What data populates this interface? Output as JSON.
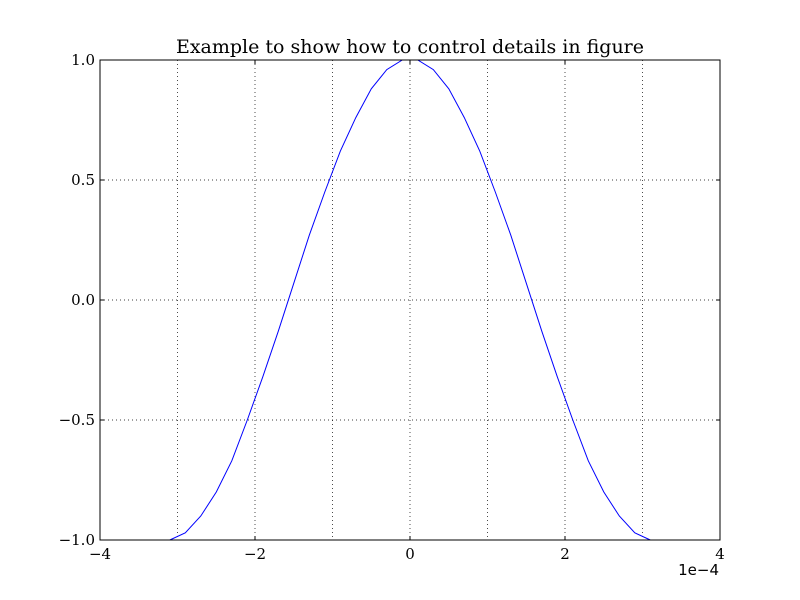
{
  "chart_data": {
    "type": "line",
    "title": "Example to show how to control details in figure",
    "xlabel": "",
    "ylabel": "",
    "xlim": [
      -4,
      4
    ],
    "ylim": [
      -1.0,
      1.0
    ],
    "x_ticks": [
      -4,
      -2,
      0,
      2,
      4
    ],
    "x_tick_labels": [
      "−4",
      "−2",
      "0",
      "2",
      "4"
    ],
    "x_minor_grid": [
      -3,
      -1,
      1,
      3
    ],
    "y_ticks": [
      -1.0,
      -0.5,
      0.0,
      0.5,
      1.0
    ],
    "y_tick_labels": [
      "−1.0",
      "−0.5",
      "0.0",
      "0.5",
      "1.0"
    ],
    "x_offset_label": "1e−4",
    "grid": true,
    "line_color": "#0000ff",
    "series": [
      {
        "x": [
          -3.1,
          -2.9,
          -2.7,
          -2.5,
          -2.3,
          -2.1,
          -1.9,
          -1.7,
          -1.5,
          -1.3,
          -1.1,
          -0.9,
          -0.7,
          -0.5,
          -0.3,
          -0.1,
          0.0,
          0.1,
          0.3,
          0.5,
          0.7,
          0.9,
          1.1,
          1.3,
          1.5,
          1.7,
          1.9,
          2.1,
          2.3,
          2.5,
          2.7,
          2.9,
          3.1
        ],
        "y": [
          -1.0,
          -0.97,
          -0.9,
          -0.8,
          -0.67,
          -0.5,
          -0.32,
          -0.13,
          0.07,
          0.27,
          0.45,
          0.62,
          0.76,
          0.88,
          0.96,
          1.0,
          1.0,
          1.0,
          0.96,
          0.88,
          0.76,
          0.62,
          0.45,
          0.27,
          0.07,
          -0.13,
          -0.32,
          -0.5,
          -0.67,
          -0.8,
          -0.9,
          -0.97,
          -1.0
        ]
      }
    ]
  }
}
